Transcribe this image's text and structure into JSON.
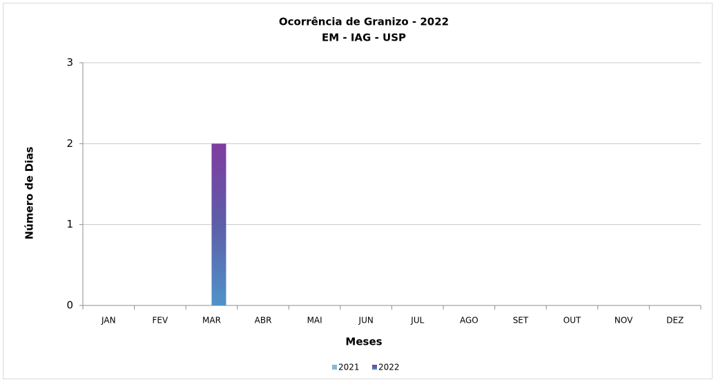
{
  "chart_data": {
    "type": "bar",
    "title": "Ocorrência de Granizo - 2022",
    "subtitle": "EM - IAG - USP",
    "x_label": "Meses",
    "y_label": "Número de Dias",
    "categories": [
      "JAN",
      "FEV",
      "MAR",
      "ABR",
      "MAI",
      "JUN",
      "JUL",
      "AGO",
      "SET",
      "OUT",
      "NOV",
      "DEZ"
    ],
    "series": [
      {
        "name": "2021",
        "color": "#86b8d8",
        "values": [
          0,
          0,
          0,
          0,
          0,
          0,
          0,
          0,
          0,
          0,
          0,
          0
        ]
      },
      {
        "name": "2022",
        "color": "#5e52a6",
        "values": [
          0,
          0,
          2,
          0,
          0,
          0,
          0,
          0,
          0,
          0,
          0,
          0
        ]
      }
    ],
    "ylim": [
      0,
      3
    ],
    "yticks": [
      0,
      1,
      2,
      3
    ],
    "grid": true,
    "legend": "bottom"
  }
}
